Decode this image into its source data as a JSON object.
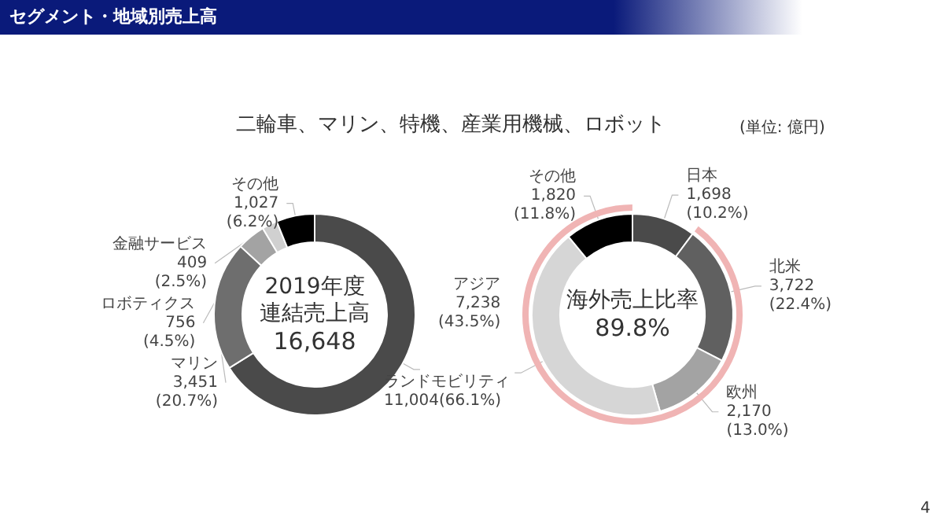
{
  "chart_data": [
    {
      "type": "donut",
      "title": "セグメント・地域別売上高",
      "subtitle": "二輪車、マリン、特機、産業用機械、ロボット",
      "categories": [
        "ランドモビリティ",
        "マリン",
        "ロボティクス",
        "金融サービス",
        "その他"
      ],
      "values": [
        11004,
        3451,
        756,
        409,
        1027
      ],
      "colors": [
        "#4a4a4a",
        "#6e6e6e",
        "#a3a3a3",
        "#d0d0d0",
        "#000000"
      ],
      "value_labels": [
        "11,004(66.1%)",
        "3,451\n(20.7%)",
        "756\n(4.5%)",
        "409\n(2.5%)",
        "1,027\n(6.2%)"
      ],
      "annotations": [
        "2019年度",
        "連結売上高",
        "16,648"
      ]
    },
    {
      "type": "donut",
      "subtitle": "(単位: 億円)",
      "categories": [
        "日本",
        "北米",
        "欧州",
        "アジア",
        "その他"
      ],
      "values": [
        1698,
        3722,
        2170,
        7238,
        1820
      ],
      "colors": [
        "#4a4a4a",
        "#606060",
        "#a3a3a3",
        "#d6d6d6",
        "#000000"
      ],
      "value_labels": [
        "1,698\n(10.2%)",
        "3,722\n(22.4%)",
        "2,170\n(13.0%)",
        "7,238\n(43.5%)",
        "1,820\n(11.8%)"
      ],
      "annotations": [
        "海外売上比率",
        "89.8%",
        "4"
      ]
    }
  ]
}
